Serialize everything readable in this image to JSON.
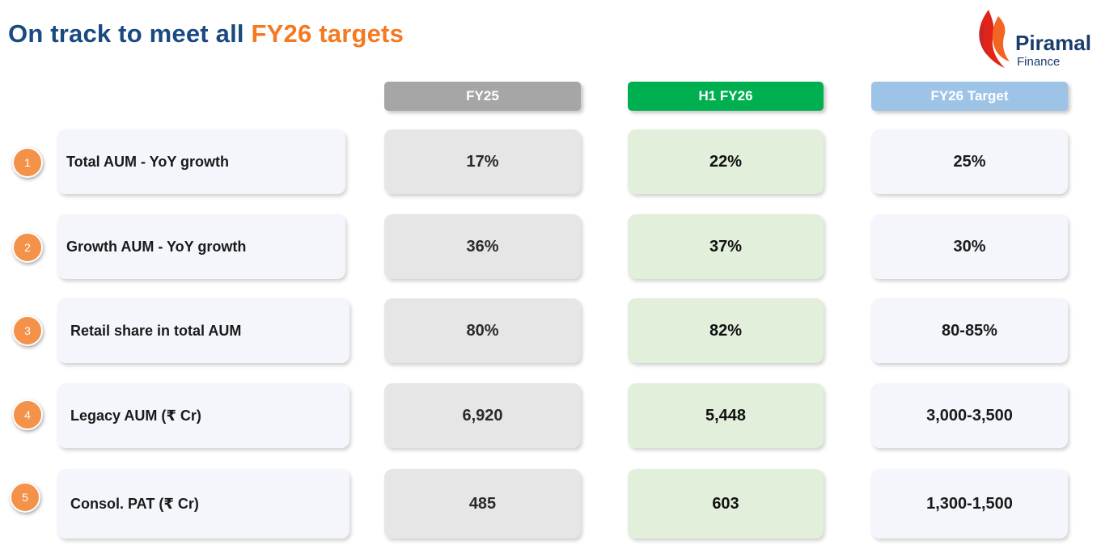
{
  "title": {
    "main": "On track to meet all ",
    "accent": "FY26 targets"
  },
  "logo": {
    "name": "Piramal",
    "sub": "Finance"
  },
  "columns": [
    "FY25",
    "H1 FY26",
    "FY26 Target"
  ],
  "rows": [
    {
      "num": "1",
      "label": "Total AUM - YoY growth",
      "fy25": "17%",
      "h1fy26": "22%",
      "target": "25%"
    },
    {
      "num": "2",
      "label": "Growth AUM - YoY growth",
      "fy25": "36%",
      "h1fy26": "37%",
      "target": "30%"
    },
    {
      "num": "3",
      "label": "Retail share in total AUM",
      "fy25": "80%",
      "h1fy26": "82%",
      "target": "80-85%"
    },
    {
      "num": "4",
      "label": "Legacy AUM (₹ Cr)",
      "fy25": "6,920",
      "h1fy26": "5,448",
      "target": "3,000-3,500"
    },
    {
      "num": "5",
      "label": "Consol. PAT (₹ Cr)",
      "fy25": "485",
      "h1fy26": "603",
      "target": "1,300-1,500"
    }
  ],
  "colors": {
    "title": "#1a4a80",
    "accent": "#f47920",
    "fy25_header": "#a6a6a6",
    "h1fy26_header": "#00b050",
    "target_header": "#9dc3e6",
    "badge": "#f4924a"
  }
}
